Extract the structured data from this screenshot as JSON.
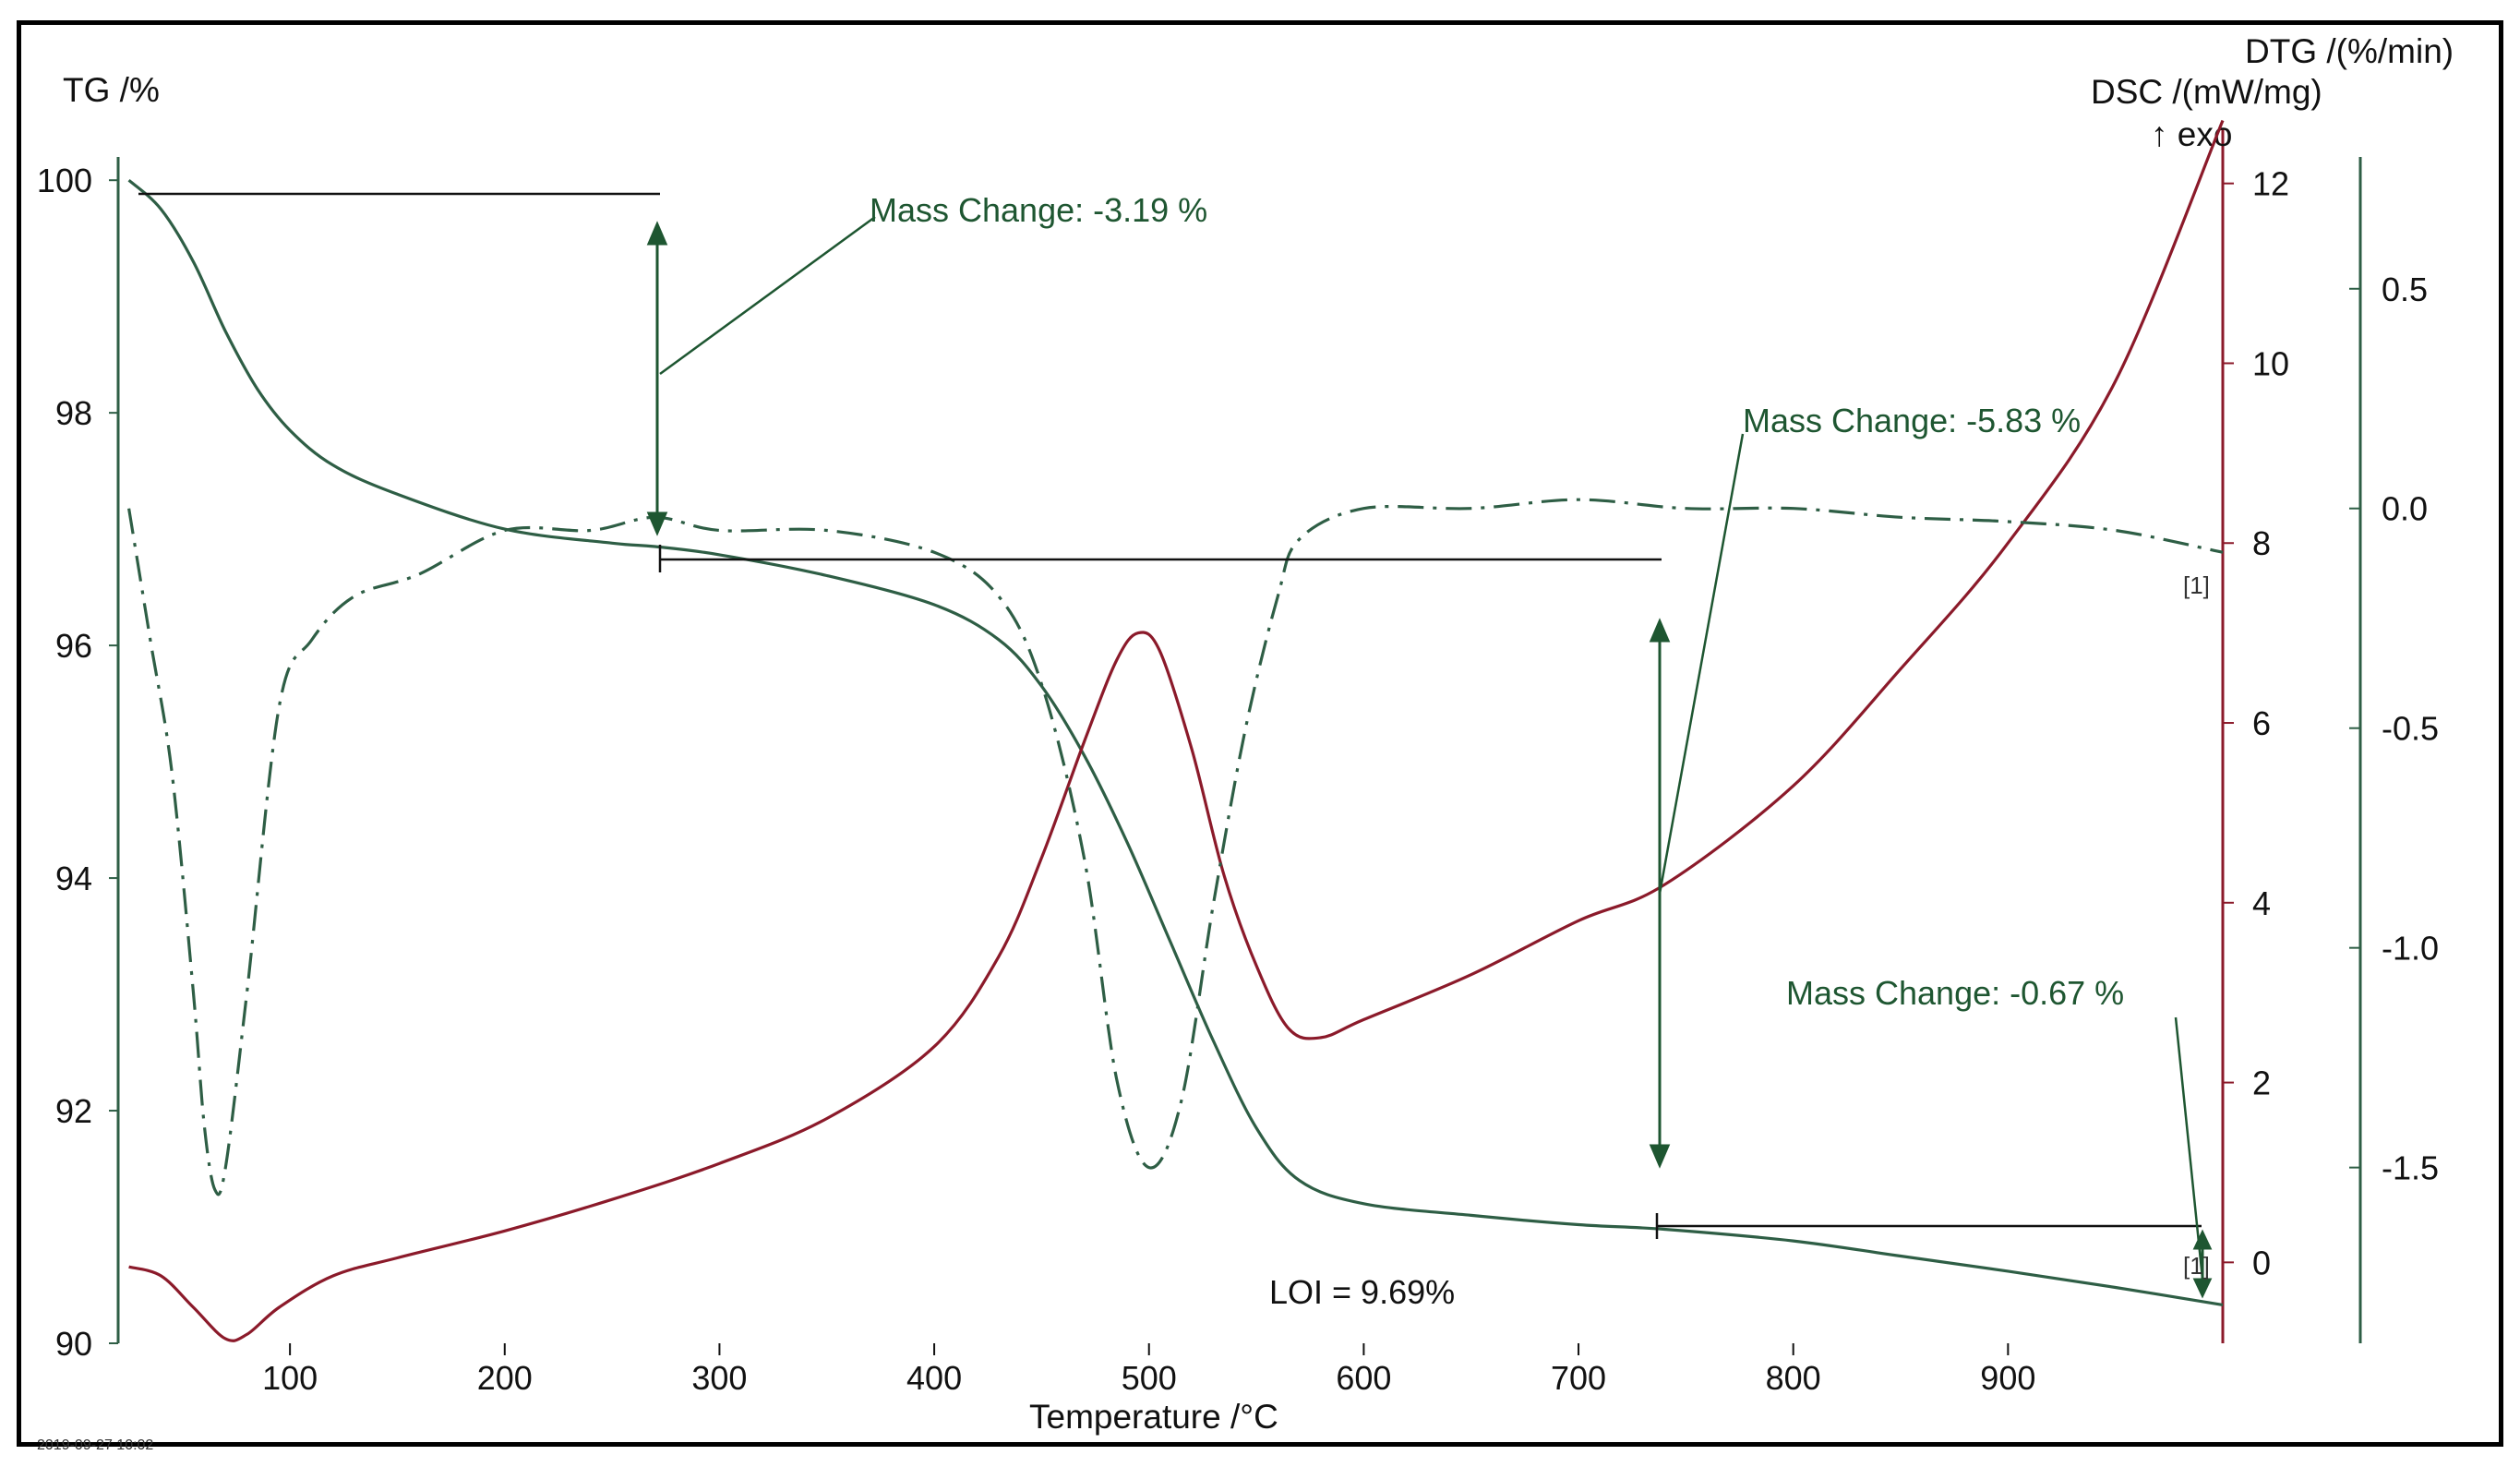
{
  "chart_data": {
    "type": "line",
    "title": "",
    "timestamp": "2019-09-27 10:02",
    "xlabel": "Temperature /°C",
    "xlim": [
      20,
      1000
    ],
    "xticks": [
      100,
      200,
      300,
      400,
      500,
      600,
      700,
      800,
      900
    ],
    "y_left": {
      "label": "TG /%",
      "lim": [
        90,
        100.2
      ],
      "ticks": [
        90,
        92,
        94,
        96,
        98,
        100
      ]
    },
    "y_dsc": {
      "label": "DSC /(mW/mg)",
      "exo_marker": "↑ exo",
      "lim": [
        -0.9,
        12.5
      ],
      "ticks": [
        0,
        2,
        4,
        6,
        8,
        10,
        12
      ]
    },
    "y_dtg": {
      "label": "DTG /(%/min)",
      "lim": [
        -1.9,
        0.8
      ],
      "ticks": [
        0.5,
        0.0,
        -0.5,
        -1.0,
        -1.5
      ],
      "tick_labels": [
        "0.5",
        "0.0",
        "-0.5",
        "-1.0",
        "-1.5"
      ]
    },
    "series": [
      {
        "name": "TG",
        "axis": "left",
        "color": "#2e5e45",
        "style": "solid",
        "x": [
          25,
          40,
          55,
          70,
          85,
          100,
          120,
          150,
          200,
          250,
          270,
          300,
          350,
          400,
          430,
          450,
          470,
          490,
          510,
          530,
          550,
          570,
          600,
          650,
          700,
          740,
          800,
          850,
          900,
          950,
          1000
        ],
        "y": [
          100.0,
          99.75,
          99.3,
          98.7,
          98.2,
          97.85,
          97.55,
          97.3,
          97.0,
          96.88,
          96.85,
          96.78,
          96.6,
          96.35,
          96.05,
          95.65,
          95.05,
          94.3,
          93.45,
          92.6,
          91.85,
          91.4,
          91.2,
          91.1,
          91.02,
          90.98,
          90.88,
          90.75,
          90.62,
          90.48,
          90.33
        ]
      },
      {
        "name": "DSC",
        "axis": "dsc",
        "color": "#8b1a2a",
        "style": "solid",
        "x": [
          25,
          40,
          55,
          70,
          80,
          95,
          120,
          150,
          200,
          250,
          300,
          350,
          400,
          430,
          450,
          470,
          485,
          495,
          505,
          520,
          535,
          550,
          565,
          580,
          600,
          650,
          700,
          740,
          800,
          850,
          900,
          950,
          1000
        ],
        "y": [
          -0.05,
          -0.15,
          -0.5,
          -0.85,
          -0.8,
          -0.5,
          -0.15,
          0.05,
          0.35,
          0.7,
          1.1,
          1.6,
          2.4,
          3.4,
          4.5,
          5.8,
          6.7,
          7.0,
          6.8,
          5.7,
          4.3,
          3.3,
          2.6,
          2.5,
          2.7,
          3.2,
          3.8,
          4.2,
          5.3,
          6.6,
          8.0,
          9.8,
          12.7
        ]
      },
      {
        "name": "DTG",
        "axis": "dtg",
        "color": "#2e5e45",
        "style": "dashdot",
        "x": [
          25,
          35,
          45,
          55,
          60,
          65,
          70,
          80,
          95,
          110,
          130,
          160,
          200,
          240,
          270,
          300,
          350,
          400,
          430,
          450,
          470,
          485,
          500,
          515,
          530,
          545,
          560,
          570,
          600,
          650,
          700,
          750,
          800,
          850,
          900,
          950,
          1000
        ],
        "y": [
          0.0,
          -0.3,
          -0.6,
          -1.1,
          -1.4,
          -1.55,
          -1.5,
          -1.1,
          -0.45,
          -0.3,
          -0.2,
          -0.15,
          -0.05,
          -0.05,
          -0.02,
          -0.05,
          -0.05,
          -0.1,
          -0.2,
          -0.4,
          -0.8,
          -1.3,
          -1.5,
          -1.35,
          -0.9,
          -0.5,
          -0.2,
          -0.07,
          0.0,
          0.0,
          0.02,
          0.0,
          0.0,
          -0.02,
          -0.03,
          -0.05,
          -0.1
        ]
      }
    ],
    "annotations": [
      {
        "text": "Mass Change: -3.19 %",
        "x_from": 25,
        "x_to": 270
      },
      {
        "text": "Mass Change: -5.83 %",
        "x_from": 270,
        "x_to": 740
      },
      {
        "text": "Mass Change: -0.67 %",
        "x_from": 740,
        "x_to": 1000
      },
      {
        "text": "LOI = 9.69%"
      }
    ],
    "curve_tags": [
      "[1]",
      "[1]"
    ]
  }
}
